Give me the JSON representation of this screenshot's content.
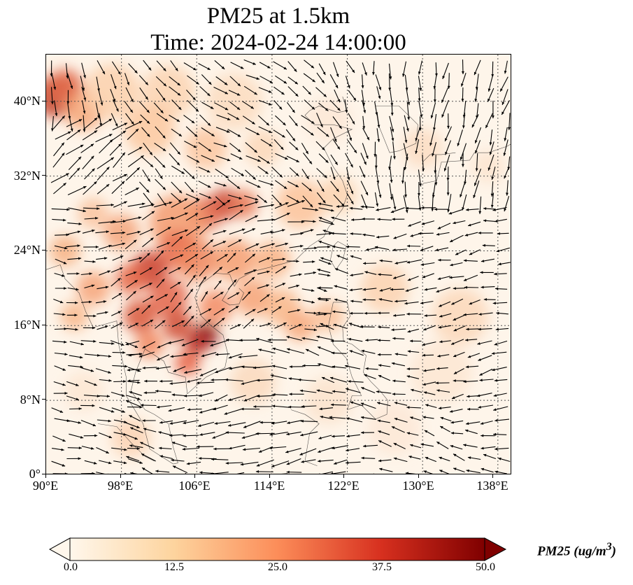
{
  "title": {
    "line1": "PM25 at 1.5km",
    "line2": "Time: 2024-02-24 14:00:00"
  },
  "map": {
    "lon_range": [
      90,
      139.5
    ],
    "lat_range": [
      0,
      45
    ],
    "lat_ticks": [
      "0°",
      "8°N",
      "16°N",
      "24°N",
      "32°N",
      "40°N"
    ],
    "lon_ticks": [
      "90°E",
      "98°E",
      "106°E",
      "114°E",
      "122°E",
      "130°E",
      "138°E"
    ],
    "gridlines": true,
    "vector_field": "wind",
    "field_colormap": "OrRd"
  },
  "colorbar": {
    "label": "PM25 (ug/m",
    "label_superscript": "3",
    "label_close": ")",
    "ticks": [
      "0.0",
      "12.5",
      "25.0",
      "37.5",
      "50.0"
    ],
    "min": 0,
    "max": 50,
    "extend": "both",
    "colors": [
      "#fff7ec",
      "#fdd49e",
      "#fc8d59",
      "#d7301f",
      "#7f0000"
    ]
  }
}
